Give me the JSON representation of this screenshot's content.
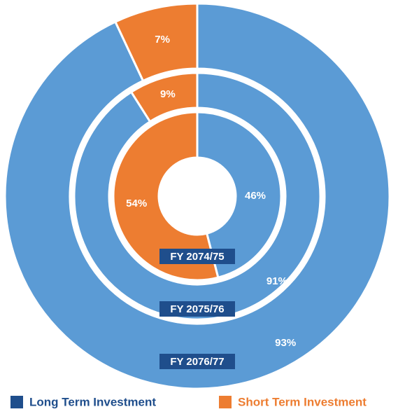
{
  "chart_data": {
    "type": "donut",
    "categories": [
      "FY 2074/75",
      "FY 2075/76",
      "FY 2076/77"
    ],
    "series": [
      {
        "name": "Long Term Investment",
        "color": "#5b9bd5",
        "legend_color": "#1f4e8c",
        "values": [
          46,
          91,
          93
        ],
        "value_labels": [
          "46%",
          "91%",
          "93%"
        ]
      },
      {
        "name": "Short Term Investment",
        "color": "#ed7d31",
        "legend_color": "#ed7d31",
        "values": [
          54,
          9,
          7
        ],
        "value_labels": [
          "54%",
          "9%",
          "7%"
        ]
      }
    ]
  }
}
